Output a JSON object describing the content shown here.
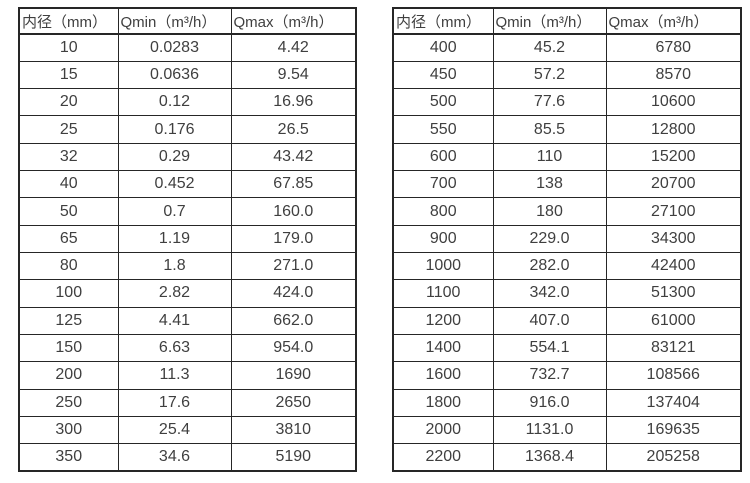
{
  "page": {
    "background_color": "#ffffff",
    "text_color": "#3f3f3f",
    "border_color": "#262626"
  },
  "tables": [
    {
      "name": "diameter-flow-table-small",
      "headers": [
        "内径（mm）",
        "Qmin（m³/h）",
        "Qmax（m³/h）"
      ],
      "rows": [
        [
          "10",
          "0.0283",
          "4.42"
        ],
        [
          "15",
          "0.0636",
          "9.54"
        ],
        [
          "20",
          "0.12",
          "16.96"
        ],
        [
          "25",
          "0.176",
          "26.5"
        ],
        [
          "32",
          "0.29",
          "43.42"
        ],
        [
          "40",
          "0.452",
          "67.85"
        ],
        [
          "50",
          "0.7",
          "160.0"
        ],
        [
          "65",
          "1.19",
          "179.0"
        ],
        [
          "80",
          "1.8",
          "271.0"
        ],
        [
          "100",
          "2.82",
          "424.0"
        ],
        [
          "125",
          "4.41",
          "662.0"
        ],
        [
          "150",
          "6.63",
          "954.0"
        ],
        [
          "200",
          "11.3",
          "1690"
        ],
        [
          "250",
          "17.6",
          "2650"
        ],
        [
          "300",
          "25.4",
          "3810"
        ],
        [
          "350",
          "34.6",
          "5190"
        ]
      ]
    },
    {
      "name": "diameter-flow-table-large",
      "headers": [
        "内径（mm）",
        "Qmin（m³/h）",
        "Qmax（m³/h）"
      ],
      "rows": [
        [
          "400",
          "45.2",
          "6780"
        ],
        [
          "450",
          "57.2",
          "8570"
        ],
        [
          "500",
          "77.6",
          "10600"
        ],
        [
          "550",
          "85.5",
          "12800"
        ],
        [
          "600",
          "110",
          "15200"
        ],
        [
          "700",
          "138",
          "20700"
        ],
        [
          "800",
          "180",
          "27100"
        ],
        [
          "900",
          "229.0",
          "34300"
        ],
        [
          "1000",
          "282.0",
          "42400"
        ],
        [
          "1100",
          "342.0",
          "51300"
        ],
        [
          "1200",
          "407.0",
          "61000"
        ],
        [
          "1400",
          "554.1",
          "83121"
        ],
        [
          "1600",
          "732.7",
          "108566"
        ],
        [
          "1800",
          "916.0",
          "137404"
        ],
        [
          "2000",
          "1131.0",
          "169635"
        ],
        [
          "2200",
          "1368.4",
          "205258"
        ]
      ]
    }
  ]
}
